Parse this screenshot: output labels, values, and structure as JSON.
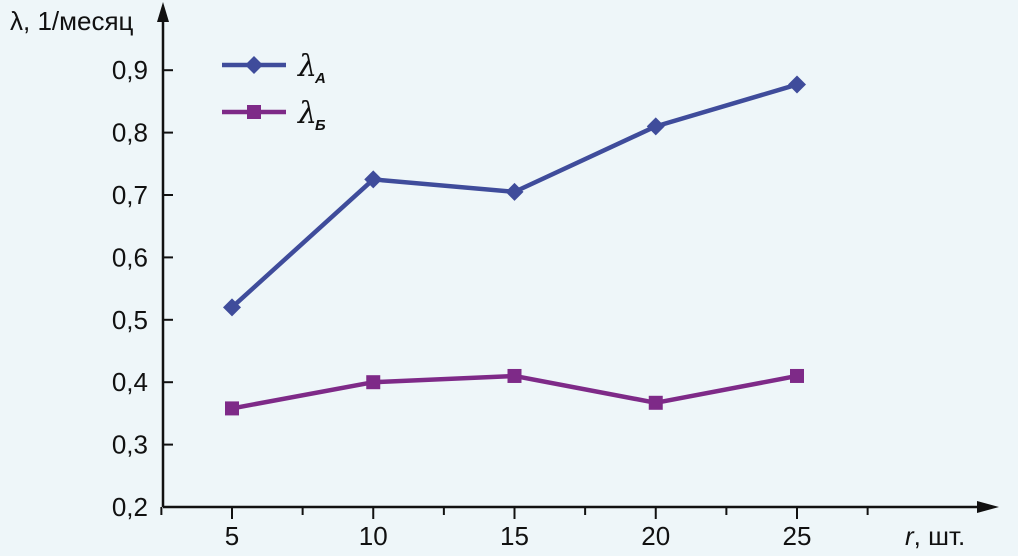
{
  "chart_data": {
    "type": "line",
    "x": [
      5,
      10,
      15,
      20,
      25
    ],
    "x_ticks": [
      "5",
      "10",
      "15",
      "20",
      "25"
    ],
    "y_ticks": [
      "0,2",
      "0,3",
      "0,4",
      "0,5",
      "0,6",
      "0,7",
      "0,8",
      "0,9"
    ],
    "ylim": [
      0.2,
      0.9
    ],
    "xlim": [
      2.5,
      27.5
    ],
    "ylabel": "λ, 1/месяц",
    "xlabel_var": "r",
    "xlabel_unit": ", шт.",
    "grid": false,
    "legend_position": "top-left",
    "series": [
      {
        "name": "λ",
        "subscript": "A",
        "marker": "diamond",
        "color": "#3f4c9b",
        "values": [
          0.52,
          0.725,
          0.705,
          0.81,
          0.877
        ]
      },
      {
        "name": "λ",
        "subscript": "Б",
        "marker": "square",
        "color": "#7e2a88",
        "values": [
          0.358,
          0.4,
          0.41,
          0.367,
          0.41
        ]
      }
    ]
  }
}
